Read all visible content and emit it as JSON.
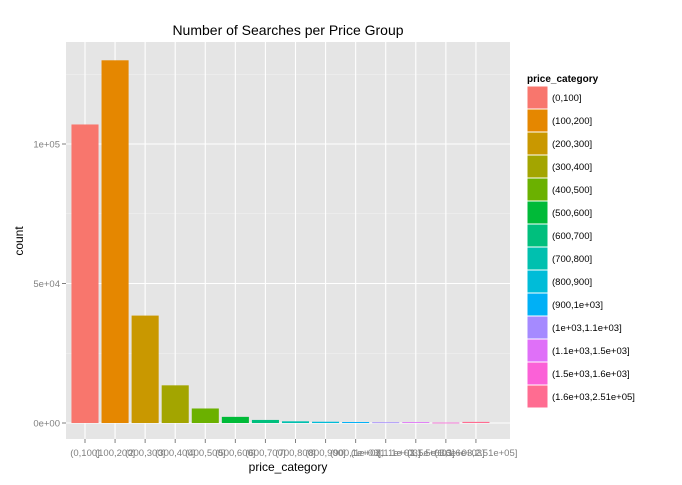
{
  "chart_data": {
    "type": "bar",
    "title": "Number of Searches per Price Group",
    "xlabel": "price_category",
    "ylabel": "count",
    "ylim": [
      0,
      137000
    ],
    "yticks": [
      0,
      50000,
      100000
    ],
    "ytick_labels": [
      "0e+00",
      "5e+04",
      "1e+05"
    ],
    "grid": true,
    "legend_position": "right",
    "legend_title": "price_category",
    "categories": [
      "(0,100]",
      "(100,200]",
      "(200,300]",
      "(300,400]",
      "(400,500]",
      "(500,600]",
      "(600,700]",
      "(700,800]",
      "(800,900]",
      "(900,1e+03]",
      "(1e+03,1.1e+03]",
      "(1.1e+03,1.5e+03]",
      "(1.5e+03,1.6e+03]",
      "(1.6e+03,2.51e+05]"
    ],
    "values": [
      107000,
      130000,
      38500,
      13500,
      5200,
      2200,
      1100,
      600,
      450,
      350,
      250,
      300,
      150,
      400
    ],
    "colors": [
      "#F8766D",
      "#E58700",
      "#C99800",
      "#A3A500",
      "#6BB100",
      "#00BA38",
      "#00BF7D",
      "#00C0AF",
      "#00BCD8",
      "#00B0F6",
      "#A58AFF",
      "#DF70F8",
      "#FB61D7",
      "#FF6C91"
    ]
  }
}
